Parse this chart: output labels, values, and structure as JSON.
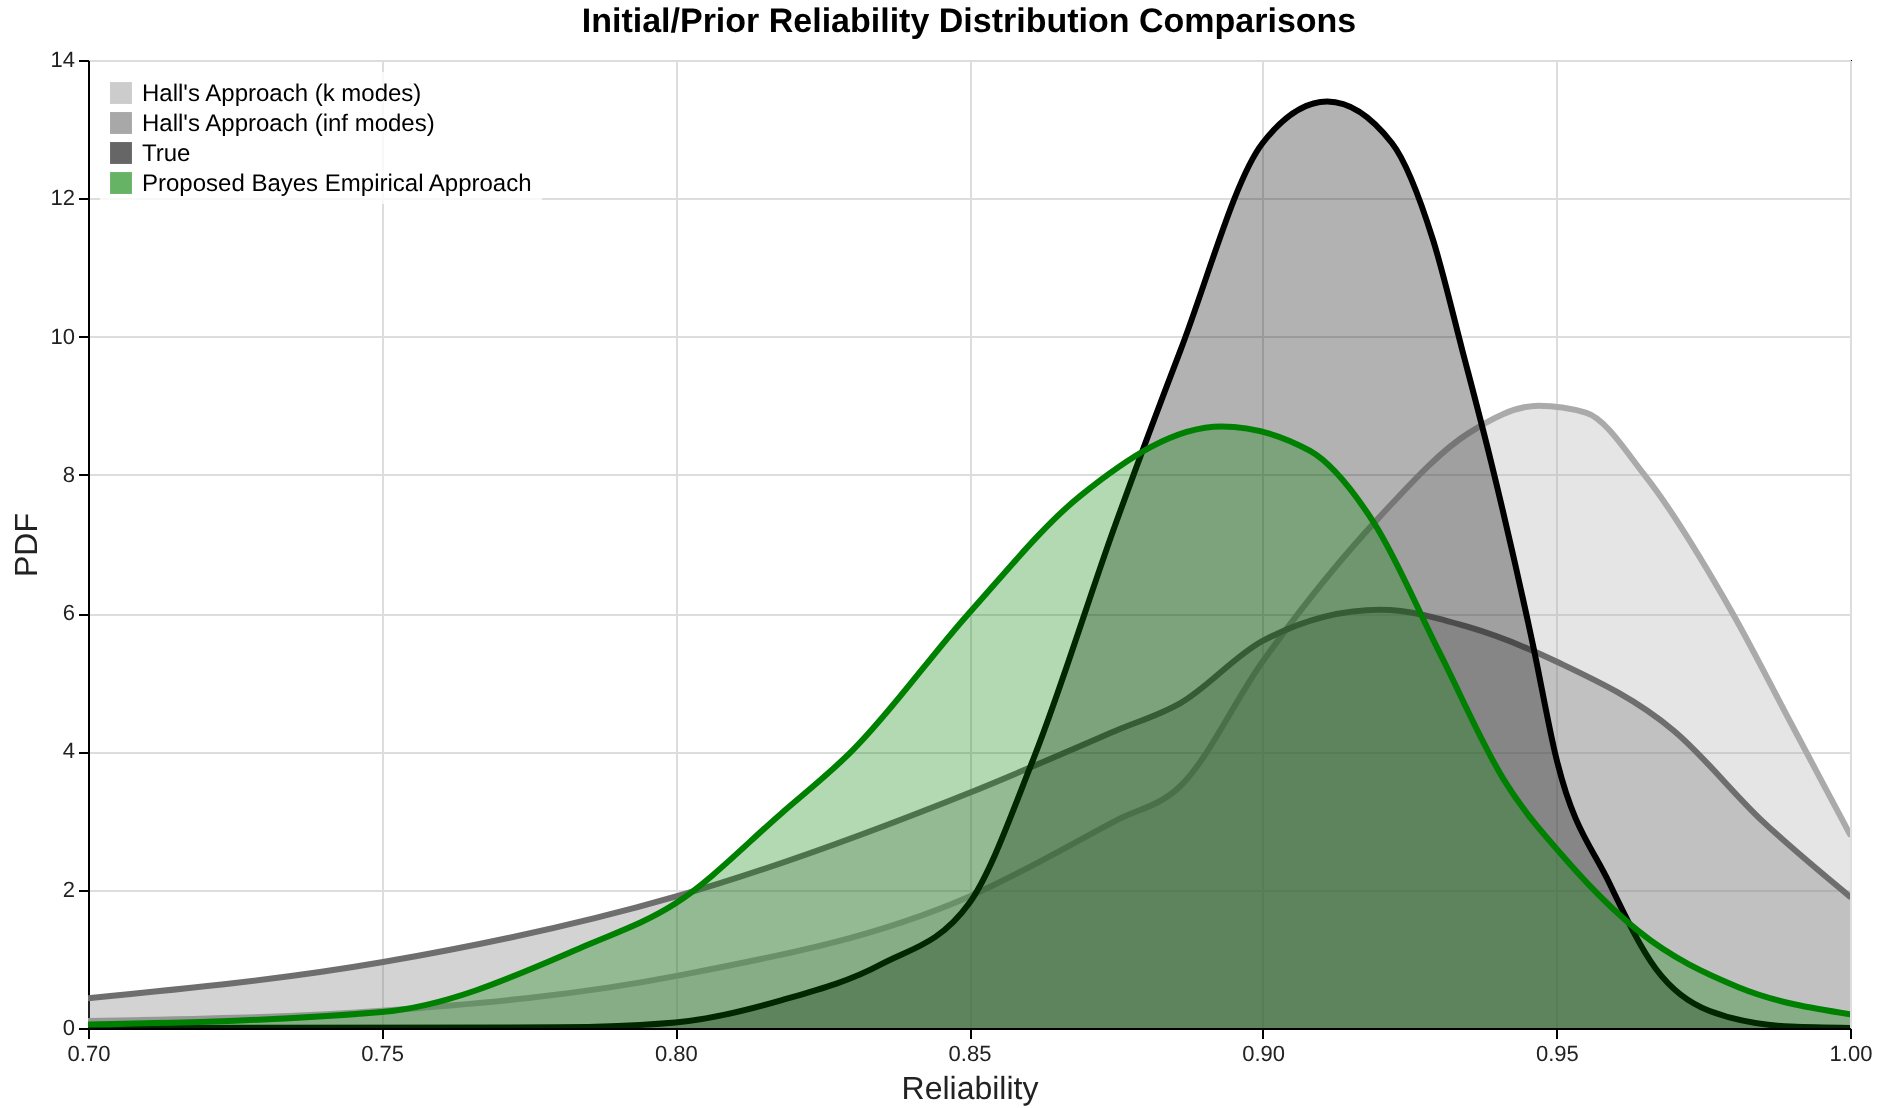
{
  "chart_data": {
    "type": "area",
    "title": "Initial/Prior Reliability Distribution Comparisons",
    "xlabel": "Reliability",
    "ylabel": "PDF",
    "series": [
      {
        "name": "Hall's Approach (k modes)",
        "color": "#aaaaaa",
        "x": [
          0.7,
          0.75,
          0.8,
          0.85,
          0.875,
          0.886,
          0.9,
          0.92,
          0.935,
          0.947,
          0.955,
          0.965,
          0.98,
          0.99,
          1.0
        ],
        "values": [
          0.1,
          0.25,
          0.75,
          1.9,
          3.0,
          3.5,
          5.3,
          7.4,
          8.6,
          9.0,
          8.9,
          8.0,
          6.0,
          4.4,
          2.8
        ]
      },
      {
        "name": "Hall's Approach (inf modes)",
        "color": "#6e6e6e",
        "x": [
          0.7,
          0.75,
          0.8,
          0.85,
          0.875,
          0.886,
          0.9,
          0.92,
          0.935,
          0.95,
          0.97,
          0.985,
          1.0
        ],
        "values": [
          0.43,
          0.95,
          1.9,
          3.4,
          4.3,
          4.7,
          5.6,
          6.05,
          5.8,
          5.3,
          4.3,
          3.0,
          1.9
        ]
      },
      {
        "name": "True",
        "color": "#000000",
        "x": [
          0.7,
          0.78,
          0.8,
          0.818,
          0.835,
          0.85,
          0.861,
          0.875,
          0.886,
          0.9,
          0.911,
          0.922,
          0.929,
          0.934,
          0.939,
          0.946,
          0.95,
          0.959,
          0.967,
          0.976,
          0.99,
          1.0
        ],
        "values": [
          0,
          0.01,
          0.08,
          0.4,
          0.92,
          1.8,
          3.9,
          7.3,
          9.8,
          12.8,
          13.4,
          12.8,
          11.4,
          9.8,
          8.15,
          5.55,
          3.9,
          2.1,
          0.85,
          0.25,
          0.02,
          0
        ]
      },
      {
        "name": "Proposed Bayes Empirical Approach",
        "color": "#008000",
        "x": [
          0.7,
          0.75,
          0.785,
          0.8,
          0.818,
          0.83,
          0.85,
          0.869,
          0.893,
          0.908,
          0.919,
          0.93,
          0.941,
          0.952,
          0.964,
          0.981,
          1.0
        ],
        "values": [
          0.05,
          0.23,
          1.2,
          1.8,
          3.1,
          4.0,
          6.0,
          7.7,
          8.7,
          8.35,
          7.3,
          5.45,
          3.6,
          2.4,
          1.4,
          0.59,
          0.2
        ]
      }
    ],
    "xlim": [
      0.7,
      1.0
    ],
    "xticks": [
      {
        "value": 0.7,
        "label": "0.70"
      },
      {
        "value": 0.75,
        "label": "0.75"
      },
      {
        "value": 0.8,
        "label": "0.80"
      },
      {
        "value": 0.85,
        "label": "0.85"
      },
      {
        "value": 0.9,
        "label": "0.90"
      },
      {
        "value": 0.95,
        "label": "0.95"
      },
      {
        "value": 1.0,
        "label": "1.00"
      }
    ],
    "ylim": [
      0,
      14
    ],
    "yticks": [
      0,
      2,
      4,
      6,
      8,
      10,
      12,
      14
    ],
    "grid": true,
    "legend": "top left"
  }
}
